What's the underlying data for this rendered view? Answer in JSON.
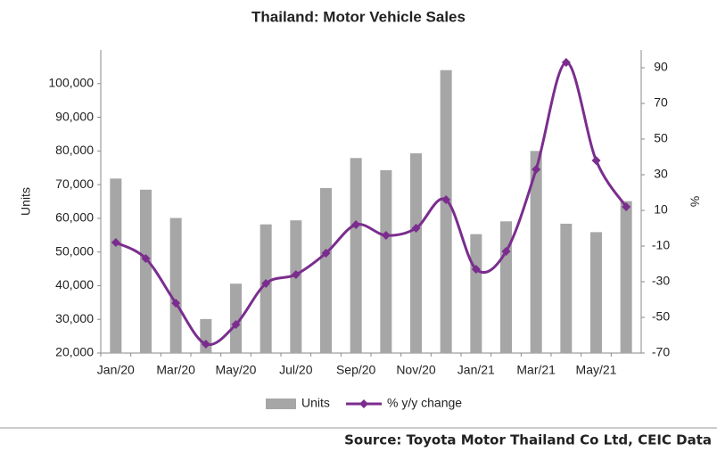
{
  "chart_data": {
    "type": "bar_line",
    "title": "Thailand: Motor Vehicle Sales",
    "categories": [
      "Jan/20",
      null,
      "Mar/20",
      null,
      "May/20",
      null,
      "Jul/20",
      null,
      "Sep/20",
      null,
      "Nov/20",
      null,
      "Jan/21",
      null,
      "Mar/21",
      null,
      "May/21",
      null
    ],
    "series": [
      {
        "name": "Units",
        "color": "#a6a6a6",
        "type": "bar",
        "values": [
          71800,
          68500,
          60100,
          30100,
          40600,
          58200,
          59400,
          69000,
          77900,
          74300,
          79300,
          104000,
          55300,
          59100,
          80000,
          58400,
          55900,
          65100
        ]
      },
      {
        "name": "% y/y change",
        "color": "#7b2d8e",
        "type": "line",
        "axis": "y2",
        "values": [
          -8,
          -17,
          -42,
          -65,
          -54,
          -31,
          -26,
          -14,
          2,
          -4,
          0,
          16,
          -23,
          -13,
          33,
          93,
          38,
          12
        ]
      }
    ],
    "y_label": "Units",
    "y2_label": "%",
    "ylim": [
      20000,
      110000
    ],
    "yticks": [
      {
        "value": 20000,
        "label": "20,000"
      },
      {
        "value": 30000,
        "label": "30,000"
      },
      {
        "value": 40000,
        "label": "40,000"
      },
      {
        "value": 50000,
        "label": "50,000"
      },
      {
        "value": 60000,
        "label": "60,000"
      },
      {
        "value": 70000,
        "label": "70,000"
      },
      {
        "value": 80000,
        "label": "80,000"
      },
      {
        "value": 90000,
        "label": "90,000"
      },
      {
        "value": 100000,
        "label": "100,000"
      }
    ],
    "y2lim": [
      -70,
      100
    ],
    "y2ticks": [
      -70,
      -50,
      -30,
      -10,
      10,
      30,
      50,
      70,
      90
    ],
    "source": "Source: Toyota Motor Thailand Co Ltd, CEIC Data"
  }
}
